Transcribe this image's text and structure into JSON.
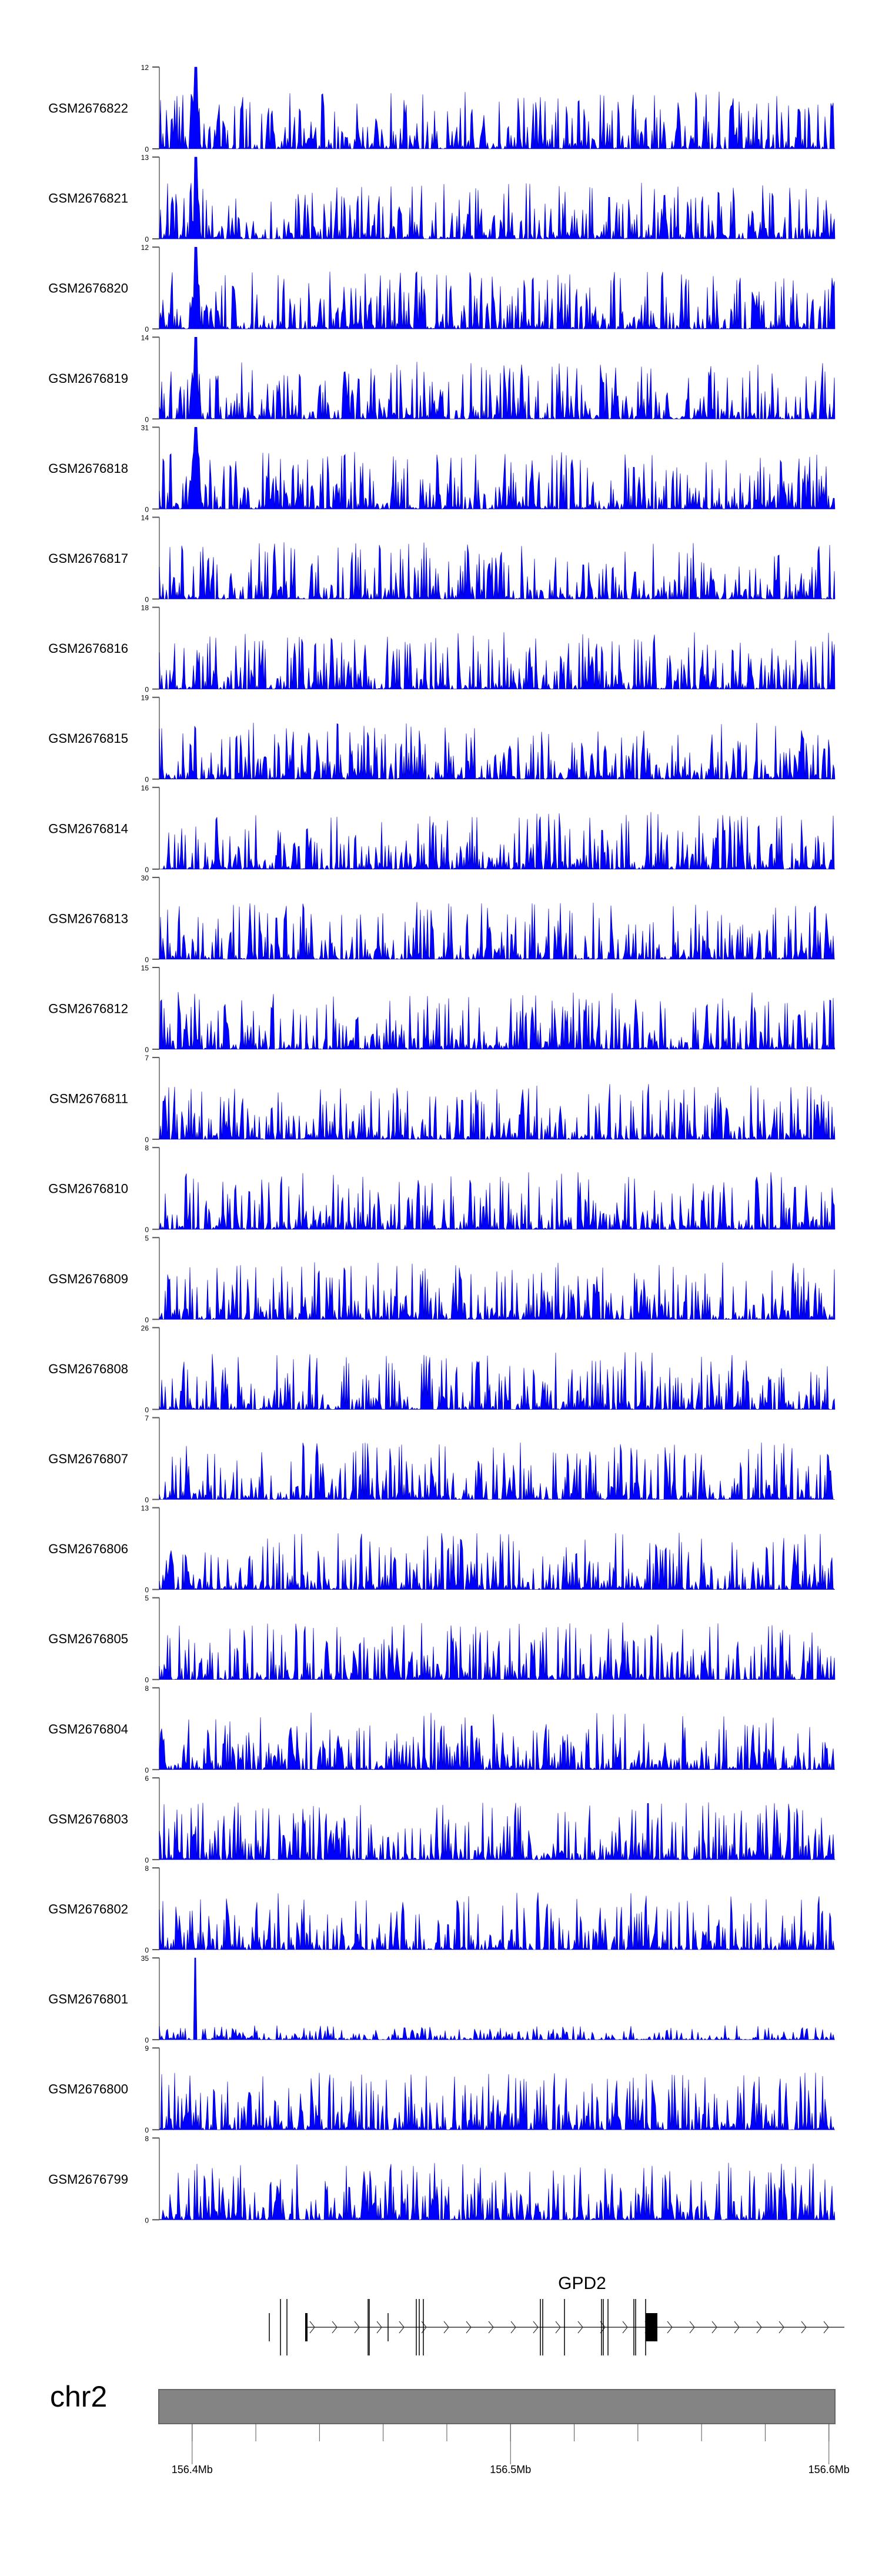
{
  "chart_data": {
    "type": "area",
    "title": "",
    "chromosome": "chr2",
    "xlim_mb": [
      156.3897,
      156.6019
    ],
    "x_ticks": [
      {
        "value": 156.4,
        "label": "156.4Mb"
      },
      {
        "value": 156.5,
        "label": "156.5Mb"
      },
      {
        "value": 156.6,
        "label": "156.6Mb"
      }
    ],
    "minor_tick_step_mb": 0.02,
    "fill_color": "#0000ff",
    "series": [
      {
        "name": "GSM2676822",
        "ymax": 12
      },
      {
        "name": "GSM2676821",
        "ymax": 13
      },
      {
        "name": "GSM2676820",
        "ymax": 12
      },
      {
        "name": "GSM2676819",
        "ymax": 14
      },
      {
        "name": "GSM2676818",
        "ymax": 31
      },
      {
        "name": "GSM2676817",
        "ymax": 14
      },
      {
        "name": "GSM2676816",
        "ymax": 18
      },
      {
        "name": "GSM2676815",
        "ymax": 19
      },
      {
        "name": "GSM2676814",
        "ymax": 16
      },
      {
        "name": "GSM2676813",
        "ymax": 30
      },
      {
        "name": "GSM2676812",
        "ymax": 15
      },
      {
        "name": "GSM2676811",
        "ymax": 7
      },
      {
        "name": "GSM2676810",
        "ymax": 8
      },
      {
        "name": "GSM2676809",
        "ymax": 5
      },
      {
        "name": "GSM2676808",
        "ymax": 26
      },
      {
        "name": "GSM2676807",
        "ymax": 7
      },
      {
        "name": "GSM2676806",
        "ymax": 13
      },
      {
        "name": "GSM2676805",
        "ymax": 5
      },
      {
        "name": "GSM2676804",
        "ymax": 8
      },
      {
        "name": "GSM2676803",
        "ymax": 6
      },
      {
        "name": "GSM2676802",
        "ymax": 8
      },
      {
        "name": "GSM2676801",
        "ymax": 35
      },
      {
        "name": "GSM2676800",
        "ymax": 9
      },
      {
        "name": "GSM2676799",
        "ymax": 8
      }
    ],
    "ymin": 0,
    "gene": {
      "name": "GPD2",
      "strand": "+",
      "start_mb": 156.4353,
      "end_mb": 156.604
    }
  }
}
